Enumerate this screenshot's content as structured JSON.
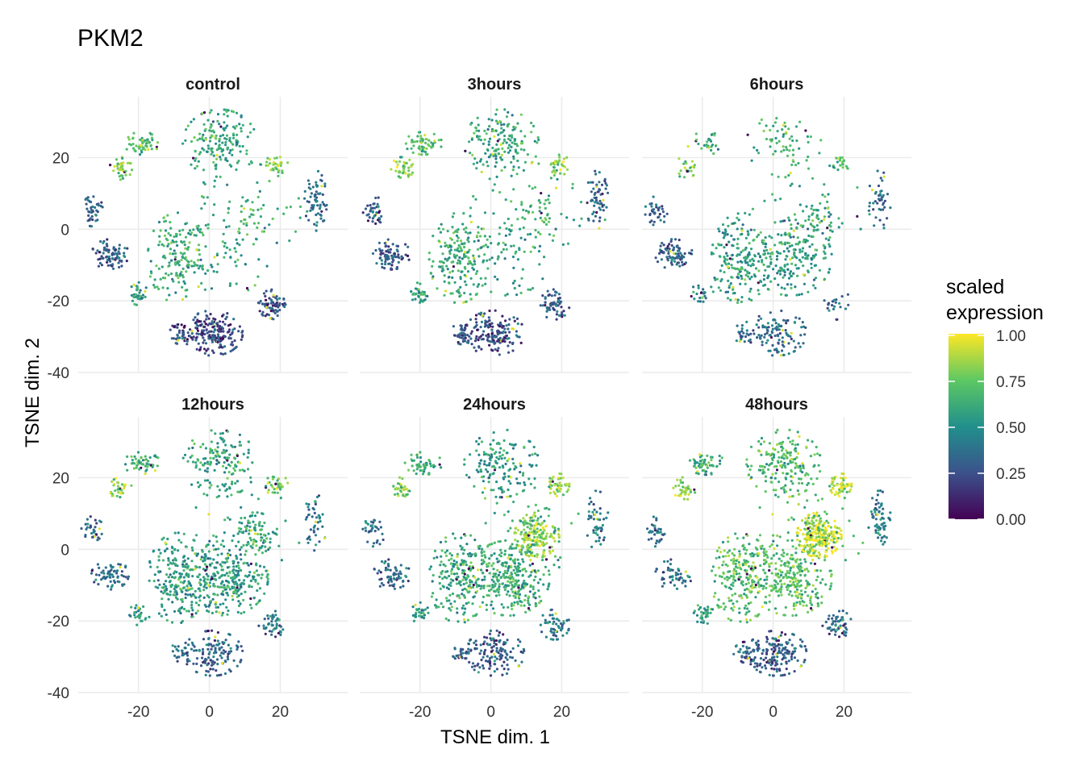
{
  "chart_data": {
    "type": "scatter",
    "title": "PKM2",
    "xlabel": "TSNE dim. 1",
    "ylabel": "TSNE dim. 2",
    "facet_layout": "2x3",
    "xlim": [
      -37,
      39
    ],
    "ylim": [
      -40,
      37
    ],
    "x_ticks": [
      -20,
      0,
      20
    ],
    "y_ticks": [
      20,
      0,
      -20,
      -40
    ],
    "grid": true,
    "color_scale": {
      "name": "viridis",
      "title_lines": [
        "scaled",
        "expression"
      ],
      "range": [
        0,
        1
      ],
      "ticks": [
        "1.00",
        "0.75",
        "0.50",
        "0.25",
        "0.00"
      ],
      "colors": [
        "#440154",
        "#3b528b",
        "#21908c",
        "#5dc863",
        "#fde725"
      ]
    },
    "legend_position": "right",
    "clusters": [
      {
        "id": "top-center",
        "x": 3,
        "y": 24,
        "rx": 10,
        "ry": 9
      },
      {
        "id": "upper-left-a",
        "x": -19,
        "y": 24,
        "rx": 5,
        "ry": 3
      },
      {
        "id": "upper-left-b",
        "x": -25,
        "y": 17,
        "rx": 3,
        "ry": 3
      },
      {
        "id": "left-small",
        "x": -33,
        "y": 5,
        "rx": 3,
        "ry": 4
      },
      {
        "id": "center-left",
        "x": -9,
        "y": -8,
        "rx": 8,
        "ry": 12
      },
      {
        "id": "left-mid",
        "x": -28,
        "y": -7,
        "rx": 5,
        "ry": 4
      },
      {
        "id": "left-low",
        "x": -20,
        "y": -18,
        "rx": 3,
        "ry": 3
      },
      {
        "id": "center",
        "x": 5,
        "y": -8,
        "rx": 11,
        "ry": 10
      },
      {
        "id": "right-mid",
        "x": 13,
        "y": 4,
        "rx": 6,
        "ry": 6
      },
      {
        "id": "right-top",
        "x": 19,
        "y": 18,
        "rx": 3,
        "ry": 3
      },
      {
        "id": "far-right",
        "x": 30,
        "y": 8,
        "rx": 3,
        "ry": 8
      },
      {
        "id": "bottom-center",
        "x": 1,
        "y": -29,
        "rx": 8,
        "ry": 6
      },
      {
        "id": "bottom-left",
        "x": -8,
        "y": -29,
        "rx": 3,
        "ry": 3
      },
      {
        "id": "bottom-right",
        "x": 18,
        "y": -21,
        "rx": 4,
        "ry": 4
      },
      {
        "id": "scatter",
        "x": 10,
        "y": 5,
        "rx": 15,
        "ry": 13
      }
    ],
    "facets": [
      {
        "label": "control",
        "weights": [
          300,
          100,
          70,
          70,
          300,
          150,
          60,
          80,
          30,
          60,
          120,
          350,
          70,
          130,
          120
        ],
        "means": [
          0.6,
          0.7,
          0.8,
          0.3,
          0.62,
          0.3,
          0.55,
          0.55,
          0.65,
          0.78,
          0.35,
          0.22,
          0.25,
          0.25,
          0.62
        ]
      },
      {
        "label": "3hours",
        "weights": [
          300,
          100,
          70,
          70,
          350,
          150,
          60,
          120,
          40,
          60,
          110,
          280,
          70,
          110,
          120
        ],
        "means": [
          0.6,
          0.7,
          0.8,
          0.3,
          0.62,
          0.28,
          0.55,
          0.55,
          0.65,
          0.8,
          0.35,
          0.25,
          0.25,
          0.28,
          0.6
        ]
      },
      {
        "label": "6hours",
        "weights": [
          120,
          50,
          40,
          60,
          350,
          150,
          40,
          350,
          60,
          40,
          80,
          200,
          40,
          40,
          120
        ],
        "means": [
          0.65,
          0.65,
          0.75,
          0.3,
          0.55,
          0.3,
          0.5,
          0.55,
          0.6,
          0.7,
          0.35,
          0.35,
          0.4,
          0.35,
          0.6
        ]
      },
      {
        "label": "12hours",
        "weights": [
          280,
          90,
          60,
          60,
          380,
          120,
          50,
          550,
          120,
          60,
          80,
          230,
          50,
          80,
          100
        ],
        "means": [
          0.58,
          0.65,
          0.8,
          0.35,
          0.55,
          0.35,
          0.55,
          0.55,
          0.6,
          0.78,
          0.4,
          0.32,
          0.35,
          0.4,
          0.58
        ]
      },
      {
        "label": "24hours",
        "weights": [
          280,
          90,
          60,
          60,
          380,
          120,
          50,
          550,
          300,
          80,
          90,
          230,
          50,
          100,
          120
        ],
        "means": [
          0.55,
          0.62,
          0.75,
          0.35,
          0.6,
          0.35,
          0.55,
          0.62,
          0.82,
          0.82,
          0.4,
          0.3,
          0.3,
          0.4,
          0.62
        ]
      },
      {
        "label": "48hours",
        "weights": [
          350,
          100,
          70,
          60,
          400,
          100,
          60,
          500,
          400,
          100,
          120,
          300,
          60,
          100,
          130
        ],
        "means": [
          0.68,
          0.62,
          0.8,
          0.35,
          0.7,
          0.38,
          0.55,
          0.7,
          0.92,
          0.9,
          0.4,
          0.3,
          0.3,
          0.35,
          0.7
        ]
      }
    ]
  }
}
